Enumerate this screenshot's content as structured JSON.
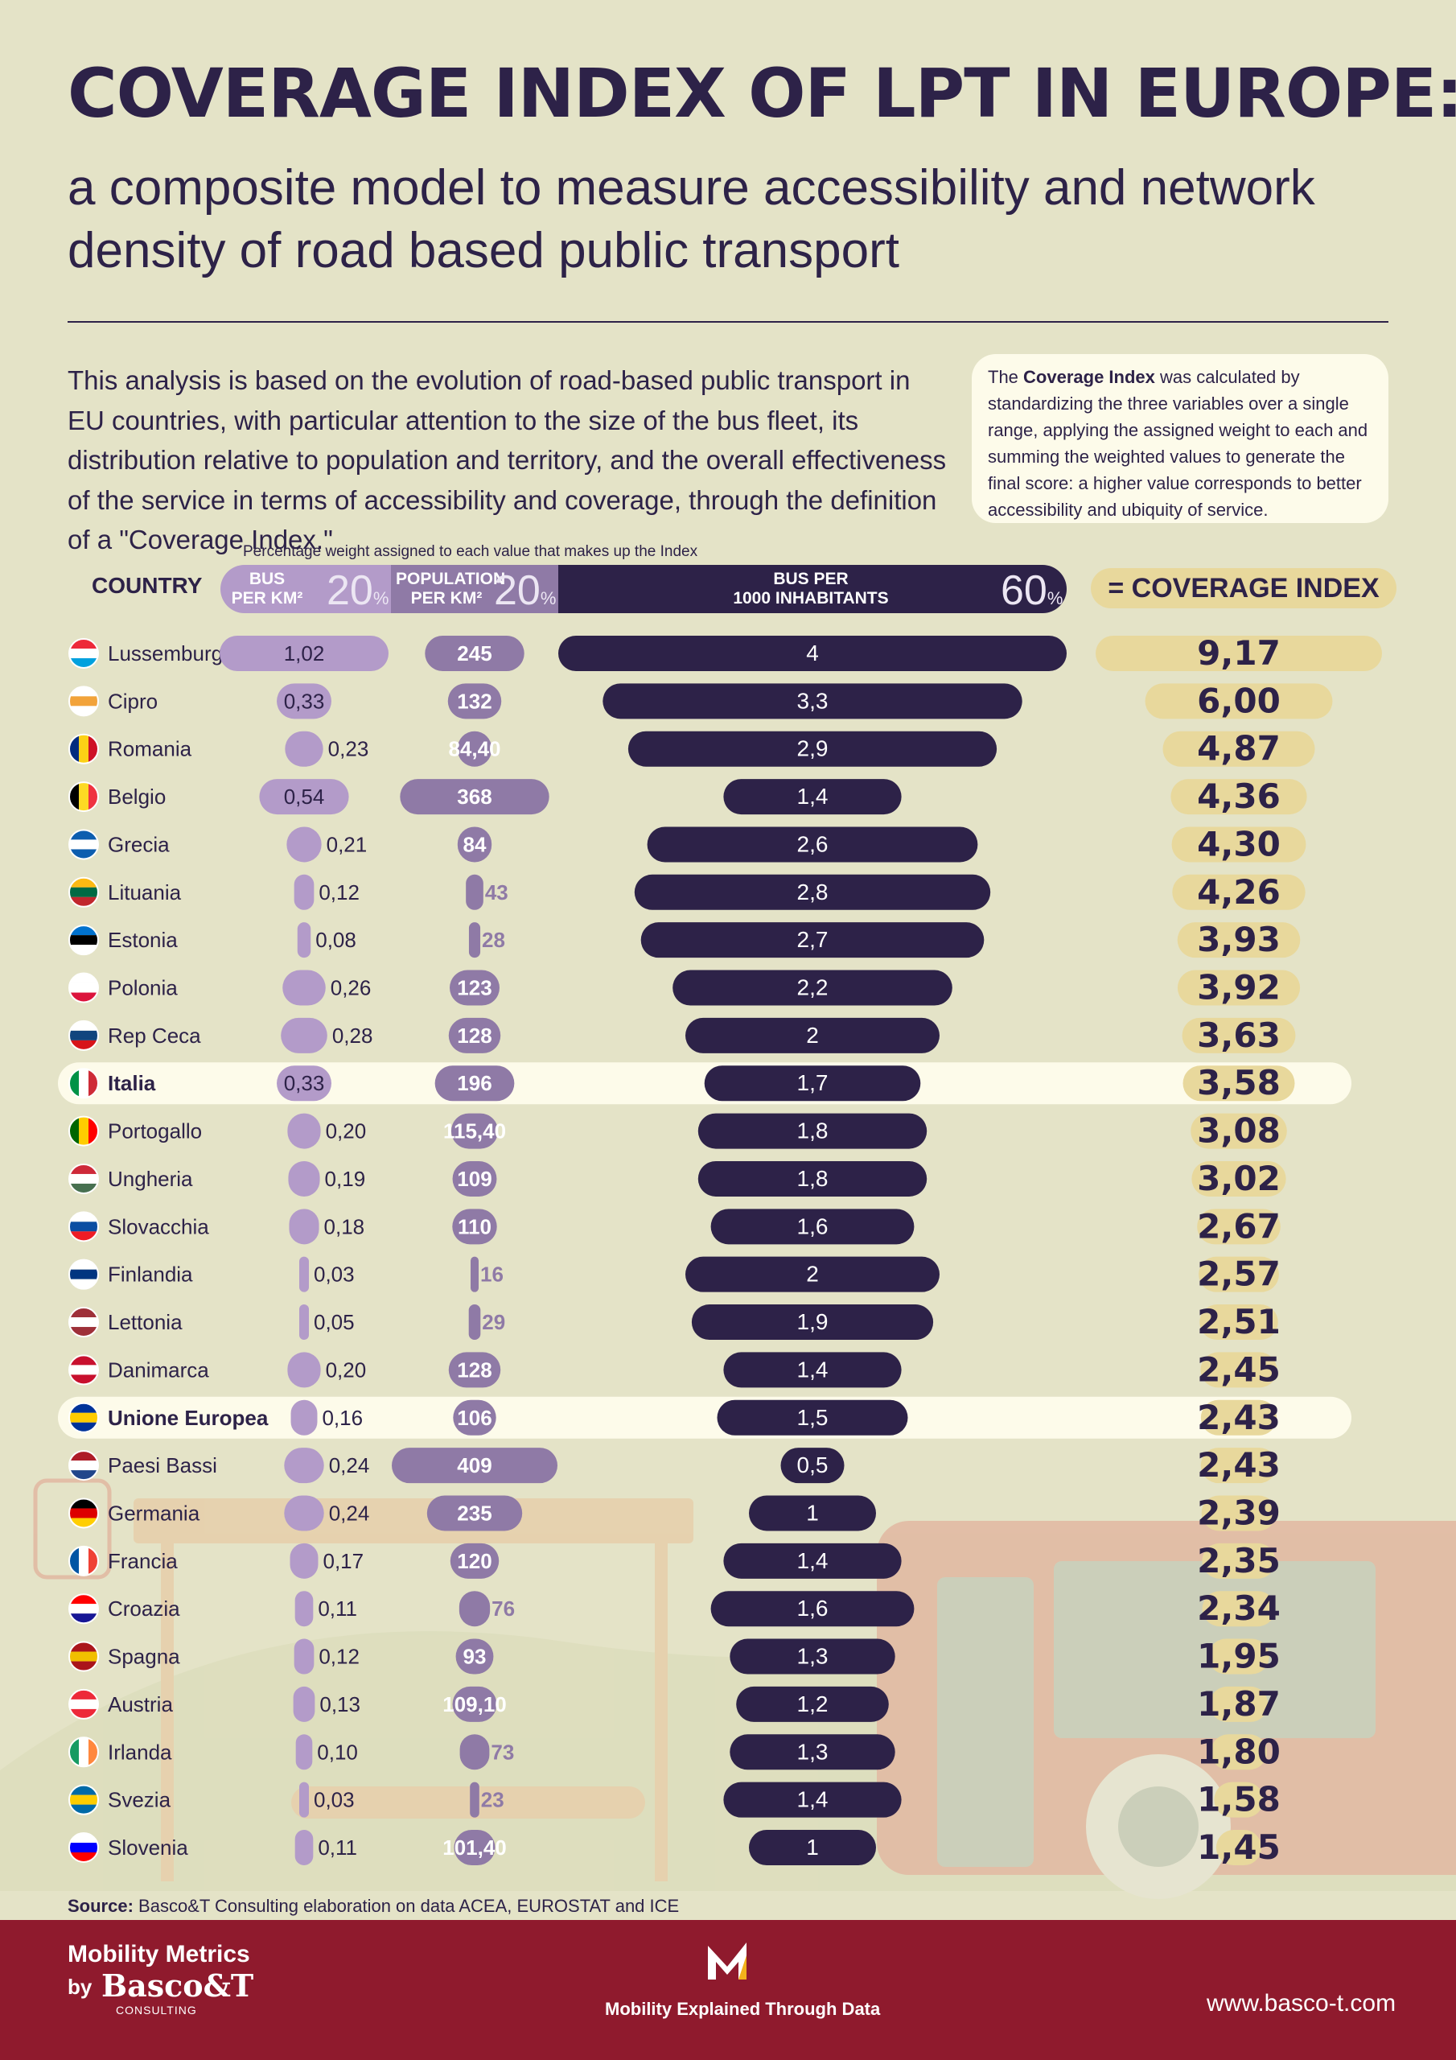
{
  "header": {
    "title": "COVERAGE INDEX OF LPT IN EUROPE:",
    "subtitle": "a composite model to measure accessibility and network density of road based public transport",
    "intro": "This analysis is based on the evolution of road-based public transport in EU countries, with particular attention to the size of the bus fleet, its distribution relative to population and territory, and the overall effectiveness of the service in terms of accessibility and coverage, through the definition of a \"Coverage Index.\"",
    "note_prefix": "The ",
    "note_bold": "Coverage Index",
    "note_rest": " was calculated by standardizing the three variables over a single range, applying the assigned weight to each and summing the weighted values to generate the final score: a higher value corresponds to better accessibility and ubiquity of service."
  },
  "table_header": {
    "caption": "Percentage weight assigned to each value that makes up the Index",
    "country": "COUNTRY",
    "col1_label": "BUS\nPER KM²",
    "col1_weight": "20",
    "col2_label": "POPULATION\nPER KM²",
    "col2_weight": "20",
    "col3_label": "BUS PER\n1000 INHABITANTS",
    "col3_weight": "60",
    "pct_sign": "%",
    "index_label": "= COVERAGE INDEX"
  },
  "colors": {
    "background": "#e4e3c7",
    "bus_per_km2": "#b39bc9",
    "population_per_km2": "#8f7aa6",
    "bus_per_1000": "#2d2248",
    "coverage_index": "#e8d89c",
    "highlight_row": "#fdfbea",
    "footer": "#8f1a2d"
  },
  "chart_data": {
    "type": "table",
    "columns": [
      "Country",
      "BUS PER KM²",
      "POPULATION PER KM²",
      "BUS PER 1000 INHABITANTS",
      "COVERAGE INDEX"
    ],
    "rows": [
      {
        "country": "Lussemburgo",
        "flag": "luxembourg-flag-icon",
        "bus_km2": "1,02",
        "pop_km2": "245",
        "bus_1000": "4",
        "index": "9,17"
      },
      {
        "country": "Cipro",
        "flag": "cyprus-flag-icon",
        "bus_km2": "0,33",
        "pop_km2": "132",
        "bus_1000": "3,3",
        "index": "6,00"
      },
      {
        "country": "Romania",
        "flag": "romania-flag-icon",
        "bus_km2": "0,23",
        "pop_km2": "84,40",
        "bus_1000": "2,9",
        "index": "4,87"
      },
      {
        "country": "Belgio",
        "flag": "belgium-flag-icon",
        "bus_km2": "0,54",
        "pop_km2": "368",
        "bus_1000": "1,4",
        "index": "4,36"
      },
      {
        "country": "Grecia",
        "flag": "greece-flag-icon",
        "bus_km2": "0,21",
        "pop_km2": "84",
        "bus_1000": "2,6",
        "index": "4,30"
      },
      {
        "country": "Lituania",
        "flag": "lithuania-flag-icon",
        "bus_km2": "0,12",
        "pop_km2": "43",
        "bus_1000": "2,8",
        "index": "4,26"
      },
      {
        "country": "Estonia",
        "flag": "estonia-flag-icon",
        "bus_km2": "0,08",
        "pop_km2": "28",
        "bus_1000": "2,7",
        "index": "3,93"
      },
      {
        "country": "Polonia",
        "flag": "poland-flag-icon",
        "bus_km2": "0,26",
        "pop_km2": "123",
        "bus_1000": "2,2",
        "index": "3,92"
      },
      {
        "country": "Rep Ceca",
        "flag": "czech-flag-icon",
        "bus_km2": "0,28",
        "pop_km2": "128",
        "bus_1000": "2",
        "index": "3,63"
      },
      {
        "country": "Italia",
        "flag": "italy-flag-icon",
        "bus_km2": "0,33",
        "pop_km2": "196",
        "bus_1000": "1,7",
        "index": "3,58",
        "highlight": true
      },
      {
        "country": "Portogallo",
        "flag": "portugal-flag-icon",
        "bus_km2": "0,20",
        "pop_km2": "115,40",
        "bus_1000": "1,8",
        "index": "3,08"
      },
      {
        "country": "Ungheria",
        "flag": "hungary-flag-icon",
        "bus_km2": "0,19",
        "pop_km2": "109",
        "bus_1000": "1,8",
        "index": "3,02"
      },
      {
        "country": "Slovacchia",
        "flag": "slovakia-flag-icon",
        "bus_km2": "0,18",
        "pop_km2": "110",
        "bus_1000": "1,6",
        "index": "2,67"
      },
      {
        "country": "Finlandia",
        "flag": "finland-flag-icon",
        "bus_km2": "0,03",
        "pop_km2": "16",
        "bus_1000": "2",
        "index": "2,57"
      },
      {
        "country": "Lettonia",
        "flag": "latvia-flag-icon",
        "bus_km2": "0,05",
        "pop_km2": "29",
        "bus_1000": "1,9",
        "index": "2,51"
      },
      {
        "country": "Danimarca",
        "flag": "denmark-flag-icon",
        "bus_km2": "0,20",
        "pop_km2": "128",
        "bus_1000": "1,4",
        "index": "2,45"
      },
      {
        "country": "Unione Europea",
        "flag": "eu-flag-icon",
        "bus_km2": "0,16",
        "pop_km2": "106",
        "bus_1000": "1,5",
        "index": "2,43",
        "highlight": true
      },
      {
        "country": "Paesi Bassi",
        "flag": "netherlands-flag-icon",
        "bus_km2": "0,24",
        "pop_km2": "409",
        "bus_1000": "0,5",
        "index": "2,43"
      },
      {
        "country": "Germania",
        "flag": "germany-flag-icon",
        "bus_km2": "0,24",
        "pop_km2": "235",
        "bus_1000": "1",
        "index": "2,39"
      },
      {
        "country": "Francia",
        "flag": "france-flag-icon",
        "bus_km2": "0,17",
        "pop_km2": "120",
        "bus_1000": "1,4",
        "index": "2,35"
      },
      {
        "country": "Croazia",
        "flag": "croatia-flag-icon",
        "bus_km2": "0,11",
        "pop_km2": "76",
        "bus_1000": "1,6",
        "index": "2,34"
      },
      {
        "country": "Spagna",
        "flag": "spain-flag-icon",
        "bus_km2": "0,12",
        "pop_km2": "93",
        "bus_1000": "1,3",
        "index": "1,95"
      },
      {
        "country": "Austria",
        "flag": "austria-flag-icon",
        "bus_km2": "0,13",
        "pop_km2": "109,10",
        "bus_1000": "1,2",
        "index": "1,87"
      },
      {
        "country": "Irlanda",
        "flag": "ireland-flag-icon",
        "bus_km2": "0,10",
        "pop_km2": "73",
        "bus_1000": "1,3",
        "index": "1,80"
      },
      {
        "country": "Svezia",
        "flag": "sweden-flag-icon",
        "bus_km2": "0,03",
        "pop_km2": "23",
        "bus_1000": "1,4",
        "index": "1,58"
      },
      {
        "country": "Slovenia",
        "flag": "slovenia-flag-icon",
        "bus_km2": "0,11",
        "pop_km2": "101,40",
        "bus_1000": "1",
        "index": "1,45"
      }
    ]
  },
  "footer": {
    "source_label": "Source:",
    "source_text": " Basco&T Consulting elaboration on data ACEA,  EUROSTAT and ICE",
    "brand_line1": "Mobility Metrics",
    "brand_by": "by",
    "brand_name": "Basco&T",
    "brand_sub": "CONSULTING",
    "tagline": "Mobility Explained Through Data",
    "url": "www.basco-t.com"
  }
}
